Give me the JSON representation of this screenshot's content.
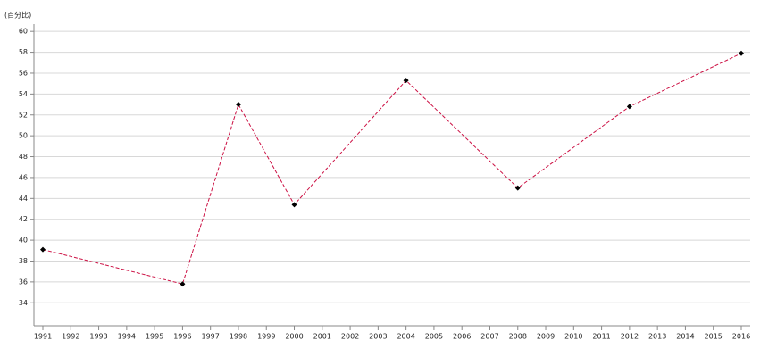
{
  "chart_data": {
    "type": "line",
    "y_label": "(百分比)",
    "x": [
      1991,
      1996,
      1998,
      2000,
      2004,
      2008,
      2012,
      2016
    ],
    "series": [
      {
        "color": "#cc1144",
        "marker_color": "#000000",
        "values": [
          39.1,
          35.8,
          53.0,
          43.4,
          55.3,
          45.0,
          52.8,
          57.9
        ]
      }
    ],
    "xlim": [
      1990.68,
      2016.32
    ],
    "xticks": [
      1991,
      1992,
      1993,
      1994,
      1995,
      1996,
      1997,
      1998,
      1999,
      2000,
      2001,
      2002,
      2003,
      2004,
      2005,
      2006,
      2007,
      2008,
      2009,
      2010,
      2011,
      2012,
      2013,
      2014,
      2015,
      2016
    ],
    "ylim": [
      31.8,
      60.7
    ],
    "yticks": [
      34,
      36,
      38,
      40,
      42,
      44,
      46,
      48,
      50,
      52,
      54,
      56,
      58,
      60
    ],
    "grid": true
  }
}
